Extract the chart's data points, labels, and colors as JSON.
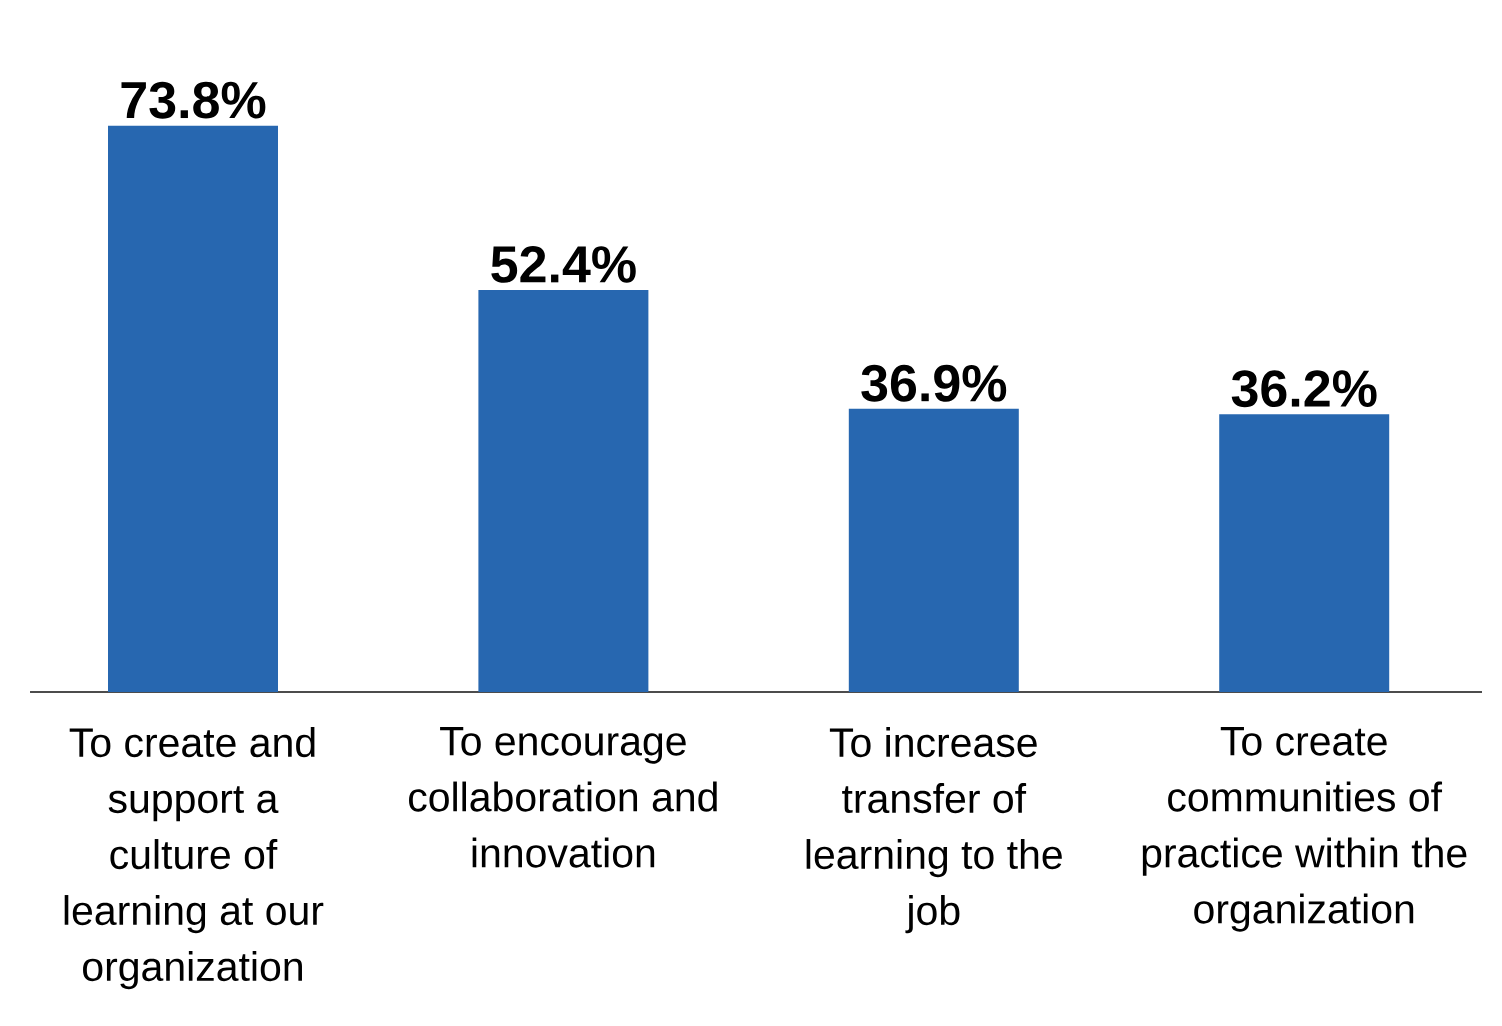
{
  "chart_data": {
    "type": "bar",
    "categories": [
      "To create and support a culture of learning at our organization",
      "To encourage collaboration and innovation",
      "To increase transfer of learning to the job",
      "To create communities of practice within the organization"
    ],
    "values": [
      73.8,
      52.4,
      36.9,
      36.2
    ],
    "value_labels": [
      "73.8%",
      "52.4%",
      "36.9%",
      "36.2%"
    ],
    "color": "#2767b0"
  }
}
